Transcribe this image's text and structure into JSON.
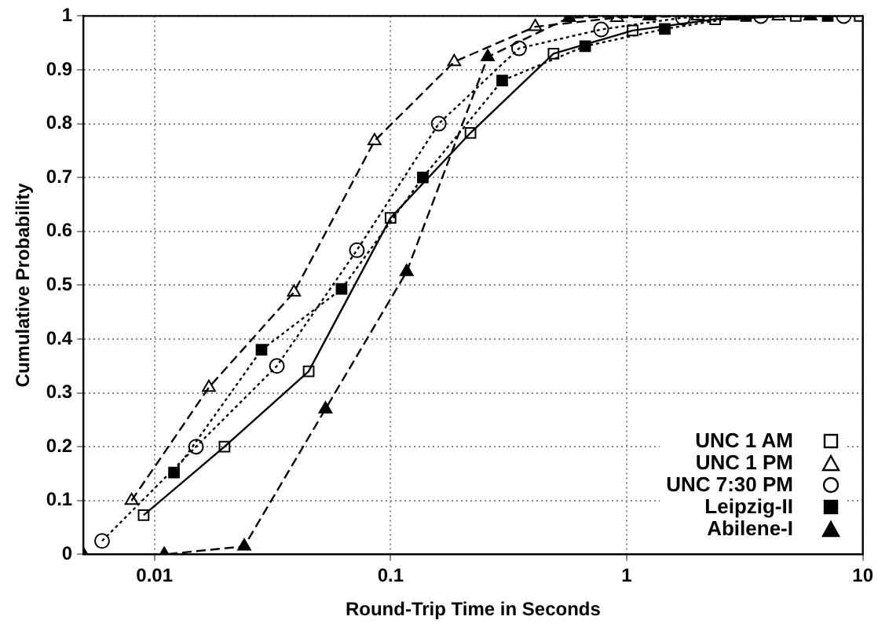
{
  "chart_data": {
    "type": "line",
    "xlabel": "Round-Trip Time in Seconds",
    "ylabel": "Cumulative Probability",
    "log": "x",
    "grid": true,
    "legend": "bottom right",
    "xlim": [
      0.005,
      10
    ],
    "xticks": [
      0.01,
      0.1,
      1,
      10
    ],
    "ylim": [
      0,
      1
    ],
    "yticks": [
      0,
      0.1,
      0.2,
      0.3,
      0.4,
      0.5,
      0.6,
      0.7,
      0.8,
      0.9,
      1
    ],
    "series": [
      {
        "name": "UNC 1 AM",
        "color": "#000000",
        "marker": "square",
        "line_style": "solid",
        "x": [
          0.009,
          0.0198,
          0.045,
          0.1,
          0.218,
          0.49,
          1.06,
          2.37,
          5.2,
          9.7
        ],
        "values": [
          0.073,
          0.2,
          0.34,
          0.625,
          0.783,
          0.93,
          0.973,
          0.994,
          1,
          1
        ]
      },
      {
        "name": "UNC 1 PM",
        "color": "#000000",
        "marker": "triangle",
        "line_style": "dashed",
        "x": [
          0.008,
          0.017,
          0.039,
          0.0855,
          0.186,
          0.41,
          0.91,
          2,
          4.4
        ],
        "values": [
          0.1,
          0.31,
          0.487,
          0.768,
          0.915,
          0.98,
          0.997,
          1,
          1
        ]
      },
      {
        "name": "UNC 7:30 PM",
        "color": "#000000",
        "marker": "circle",
        "line_style": "dotted",
        "x": [
          0.006,
          0.015,
          0.033,
          0.072,
          0.16,
          0.35,
          0.78,
          1.73,
          3.7,
          8.3
        ],
        "values": [
          0.025,
          0.2,
          0.35,
          0.565,
          0.8,
          0.94,
          0.975,
          0.997,
          1,
          1
        ]
      },
      {
        "name": "Leipzig-II",
        "color": "#000000",
        "marker": "square",
        "line_style": "dotted",
        "x": [
          0.0121,
          0.0284,
          0.062,
          0.137,
          0.297,
          0.667,
          1.45,
          3.2,
          7.1
        ],
        "values": [
          0.152,
          0.38,
          0.493,
          0.7,
          0.88,
          0.944,
          0.976,
          1,
          1
        ]
      },
      {
        "name": "Abilene-I",
        "color": "#000000",
        "marker": "triangle",
        "line_style": "dashed",
        "x": [
          0.005,
          0.011,
          0.024,
          0.053,
          0.117,
          0.258,
          0.57,
          1.25,
          2.8,
          6
        ],
        "values": [
          0,
          0,
          0.015,
          0.27,
          0.525,
          0.924,
          0.997,
          1,
          1,
          1
        ]
      }
    ]
  }
}
